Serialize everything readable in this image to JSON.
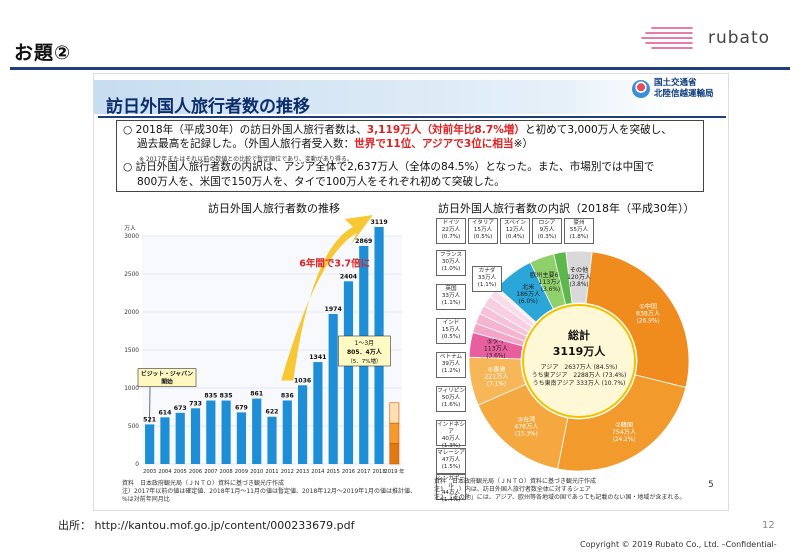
{
  "heading": "お題②",
  "logo": {
    "text": "rubato",
    "icon": "striped-lines-logo"
  },
  "slide": {
    "title": "訪日外国人旅行者数の推移",
    "ministry": [
      "国土交通省",
      "北陸信越運輸局"
    ],
    "summary": {
      "line1_a": "2018年（平成30年）の訪日外国人旅行者数は、",
      "line1_red": "3,119万人（対前年比8.7%増）",
      "line1_b": "と初めて3,000万人を突破し、",
      "line2_a": "過去最高を記録した。（外国人旅行者受入数：",
      "line2_red": "世界で11位、アジアで3位に相当",
      "line2_b": "※）",
      "note": "※ 2017年またはそれ以前の数値との比較で暫定順位であり、変動があり得る。",
      "line3": "訪日外国人旅行者数の内訳は、アジア全体で2,637万人（全体の84.5%）となった。また、市場別では中国で",
      "line4": "800万人を、米国で150万人を、タイで100万人をそれぞれ初めて突破した。",
      "bullet": "○"
    }
  },
  "chart_data": [
    {
      "type": "bar",
      "title": "訪日外国人旅行者数の推移",
      "ylabel": "万人",
      "ylim": [
        0,
        3000
      ],
      "yticks": [
        0,
        500,
        1000,
        1500,
        2000,
        2500,
        3000
      ],
      "categories": [
        "2003",
        "2004",
        "2005",
        "2006",
        "2007",
        "2008",
        "2009",
        "2010",
        "2011",
        "2012",
        "2013",
        "2014",
        "2015",
        "2016",
        "2017",
        "2018",
        "2019 年"
      ],
      "values": [
        521,
        614,
        673,
        733,
        835,
        835,
        679,
        861,
        622,
        836,
        1036,
        1341,
        1974,
        2404,
        2869,
        3119,
        805.4
      ],
      "series_color": "#1e8fd6",
      "annotations": {
        "growth": "6年間で3.7倍に",
        "campaign": "ビジット・ジャパン",
        "campaign2": "開始",
        "q1_label_1": "1～3月",
        "q1_label_2": "805．4万人",
        "q1_label_3": "（5．7%増）"
      }
    },
    {
      "type": "pie",
      "title": "訪日外国人旅行者数の内訳（2018年（平成30年））",
      "center_title": "総計",
      "center_value": "3119万人",
      "center_lines": [
        "アジア　2637万人 (84.5%)",
        "うち東アジア　2288万人 (73.4%)",
        "うち東南アジア 333万人 (10.7%)"
      ],
      "slices": [
        {
          "label": "①中国",
          "value": "838万人",
          "share": 26.9,
          "pct": "(26.9%)",
          "color": "#f08c1e"
        },
        {
          "label": "②韓国",
          "value": "754万人",
          "share": 24.2,
          "pct": "(24.2%)",
          "color": "#f39a2c"
        },
        {
          "label": "③台湾",
          "value": "476万人",
          "share": 15.3,
          "pct": "(15.3%)",
          "color": "#f5a83f"
        },
        {
          "label": "④香港",
          "value": "221万人",
          "share": 7.1,
          "pct": "(7.1%)",
          "color": "#f7b658"
        },
        {
          "label": "⑤タイ",
          "value": "113万人",
          "share": 3.6,
          "pct": "(3.6%)",
          "color": "#e85fa0"
        },
        {
          "label": "シンガポール",
          "value": "44万人",
          "share": 1.4,
          "pct": "(1.4%)",
          "color": "#f3a6c8"
        },
        {
          "label": "マレーシア",
          "value": "47万人",
          "share": 1.5,
          "pct": "(1.5%)",
          "color": "#f5b4d0"
        },
        {
          "label": "インドネシア",
          "value": "40万人",
          "share": 1.3,
          "pct": "(1.3%)",
          "color": "#f7c2d8"
        },
        {
          "label": "フィリピン",
          "value": "50万人",
          "share": 1.6,
          "pct": "(1.6%)",
          "color": "#f8cfe0"
        },
        {
          "label": "ベトナム",
          "value": "39万人",
          "share": 1.2,
          "pct": "(1.2%)",
          "color": "#fadbe8"
        },
        {
          "label": "インド",
          "value": "15万人",
          "share": 0.5,
          "pct": "(0.5%)",
          "color": "#fce8ef"
        },
        {
          "label": "北米",
          "value": "186万人",
          "share": 6.0,
          "pct": "(6.0%)",
          "color": "#2aa7d8"
        },
        {
          "label": "欧州主要6カ国",
          "value": "113万人",
          "share": 3.6,
          "pct": "(3.6%)",
          "color": "#8fd06b"
        },
        {
          "label": "豪州",
          "value": "55万人",
          "share": 1.8,
          "pct": "(1.8%)",
          "color": "#5cb84a"
        },
        {
          "label": "その他",
          "value": "120万人",
          "share": 3.8,
          "pct": "(3.8%)",
          "color": "#d9d9d9"
        }
      ]
    }
  ],
  "legend_boxes": [
    {
      "name": "ドイツ",
      "value": "22万人",
      "pct": "(0.7%)"
    },
    {
      "name": "イタリア",
      "value": "15万人",
      "pct": "(0.5%)"
    },
    {
      "name": "スペイン",
      "value": "12万人",
      "pct": "(0.4%)"
    },
    {
      "name": "ロシア",
      "value": "9万人",
      "pct": "(0.3%)"
    },
    {
      "name": "豪州",
      "value": "55万人",
      "pct": "(1.8%)"
    },
    {
      "name": "フランス",
      "value": "30万人",
      "pct": "(1.0%)"
    },
    {
      "name": "英国",
      "value": "33万人",
      "pct": "(1.1%)"
    },
    {
      "name": "カナダ",
      "value": "33万人",
      "pct": "(1.1%)"
    },
    {
      "name": "インド",
      "value": "15万人",
      "pct": "(0.5%)"
    },
    {
      "name": "ベトナム",
      "value": "39万人",
      "pct": "(1.2%)"
    },
    {
      "name": "フィリピン",
      "value": "50万人",
      "pct": "(1.6%)"
    },
    {
      "name": "インドネシア",
      "value": "40万人",
      "pct": "(1.3%)"
    },
    {
      "name": "マレーシア",
      "value": "47万人",
      "pct": "(1.5%)"
    },
    {
      "name": "シンガポール",
      "value": "44万人",
      "pct": "(1.4%)"
    }
  ],
  "notes": {
    "bar_source": "資料　日本政府観光局（ＪＮＴＯ）資料に基づき観光庁作成",
    "bar_note1": "注）2017年以前の値は確定値、2018年1月～11月の値は暫定値、2018年12月～2019年1月の値は推計値、",
    "bar_note2": "%は対前年同月比",
    "pie_source": "資料　日本政府観光局（ＪＮＴＯ）資料に基づき観光庁作成",
    "pie_note1": "注1　（　）内は、訪日外国人旅行者数全体に対するシェア",
    "pie_note2": "注2　「その他」には、アジア、欧州等各地域の国であっても記載のない国・地域が含まれる。",
    "inner_page": "5"
  },
  "footer": {
    "source_label": "出所：",
    "source_url": "http://kantou.mof.go.jp/content/000233679.pdf",
    "page_number": "12",
    "copyright": "Copyright © 2019 Rubato Co., Ltd. –Confidential-"
  }
}
